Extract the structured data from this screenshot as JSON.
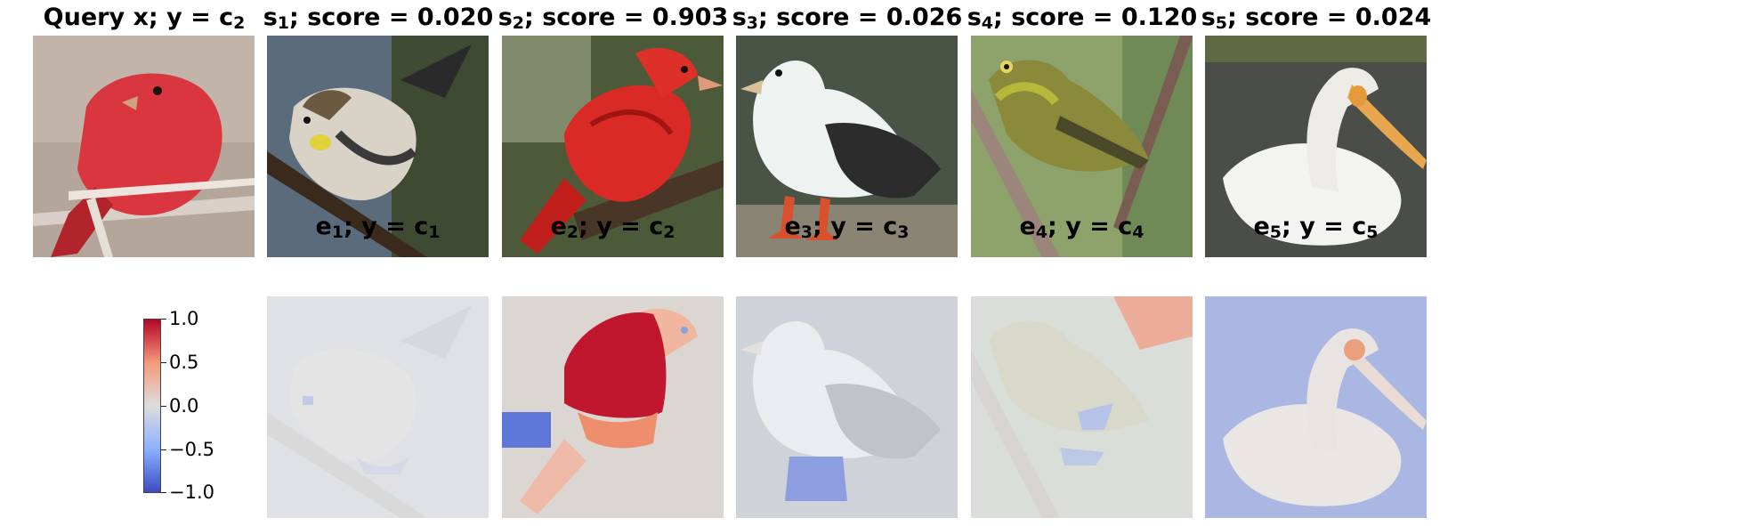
{
  "top_titles": [
    {
      "pre": "Query x; y = c",
      "sub": "2",
      "post": ""
    },
    {
      "pre": "s",
      "sub": "1",
      "post": "; score = 0.020"
    },
    {
      "pre": "s",
      "sub": "2",
      "post": "; score = 0.903"
    },
    {
      "pre": "s",
      "sub": "3",
      "post": "; score = 0.026"
    },
    {
      "pre": "s",
      "sub": "4",
      "post": "; score = 0.120"
    },
    {
      "pre": "s",
      "sub": "5",
      "post": "; score = 0.024"
    }
  ],
  "bottom_titles": [
    {
      "pre": "e",
      "sub": "1",
      "mid": "; y = c",
      "sub2": "1"
    },
    {
      "pre": "e",
      "sub": "2",
      "mid": "; y = c",
      "sub2": "2"
    },
    {
      "pre": "e",
      "sub": "3",
      "mid": "; y = c",
      "sub2": "3"
    },
    {
      "pre": "e",
      "sub": "4",
      "mid": "; y = c",
      "sub2": "4"
    },
    {
      "pre": "e",
      "sub": "5",
      "mid": "; y = c",
      "sub2": "5"
    }
  ],
  "colorbar": {
    "ticks": [
      "1.0",
      "0.5",
      "0.0",
      "−0.5",
      "−1.0"
    ],
    "colormap": [
      "#3b4cc0",
      "#8db0fe",
      "#dddddd",
      "#f49a7b",
      "#b40426"
    ]
  },
  "images": {
    "query": "red-bird-on-branch",
    "s1": "yellow-rumped-warbler",
    "s2": "red-bird-on-branch",
    "s3": "white-gull",
    "s4": "olive-vireo",
    "s5": "white-pelican"
  }
}
